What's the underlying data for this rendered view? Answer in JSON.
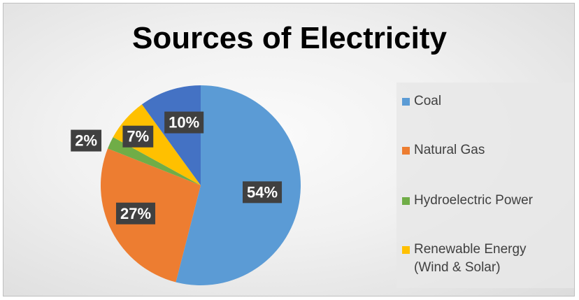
{
  "chart_data": {
    "type": "pie",
    "title": "Sources of Electricity",
    "categories": [
      "Coal",
      "Natural Gas",
      "Hydroelectric Power",
      "Renewable Energy\n(Wind & Solar)"
    ],
    "slices": [
      {
        "name": "Coal",
        "value": 54,
        "label": "54%",
        "color": "#5b9bd5"
      },
      {
        "name": "Natural Gas",
        "value": 27,
        "label": "27%",
        "color": "#ed7d31"
      },
      {
        "name": "Hydroelectric Power",
        "value": 2,
        "label": "2%",
        "color": "#70ad47"
      },
      {
        "name": "Renewable Energy (Wind & Solar)",
        "value": 7,
        "label": "7%",
        "color": "#ffc000"
      },
      {
        "name": "",
        "value": 10,
        "label": "10%",
        "color": "#4472c4"
      }
    ],
    "legend_placement": "right"
  },
  "legend": {
    "items": [
      {
        "label": "Coal",
        "color": "#5b9bd5"
      },
      {
        "label": "Natural Gas",
        "color": "#ed7d31"
      },
      {
        "label": "Hydroelectric Power",
        "color": "#70ad47"
      },
      {
        "label": "Renewable Energy\n(Wind & Solar)",
        "color": "#ffc000"
      }
    ]
  }
}
